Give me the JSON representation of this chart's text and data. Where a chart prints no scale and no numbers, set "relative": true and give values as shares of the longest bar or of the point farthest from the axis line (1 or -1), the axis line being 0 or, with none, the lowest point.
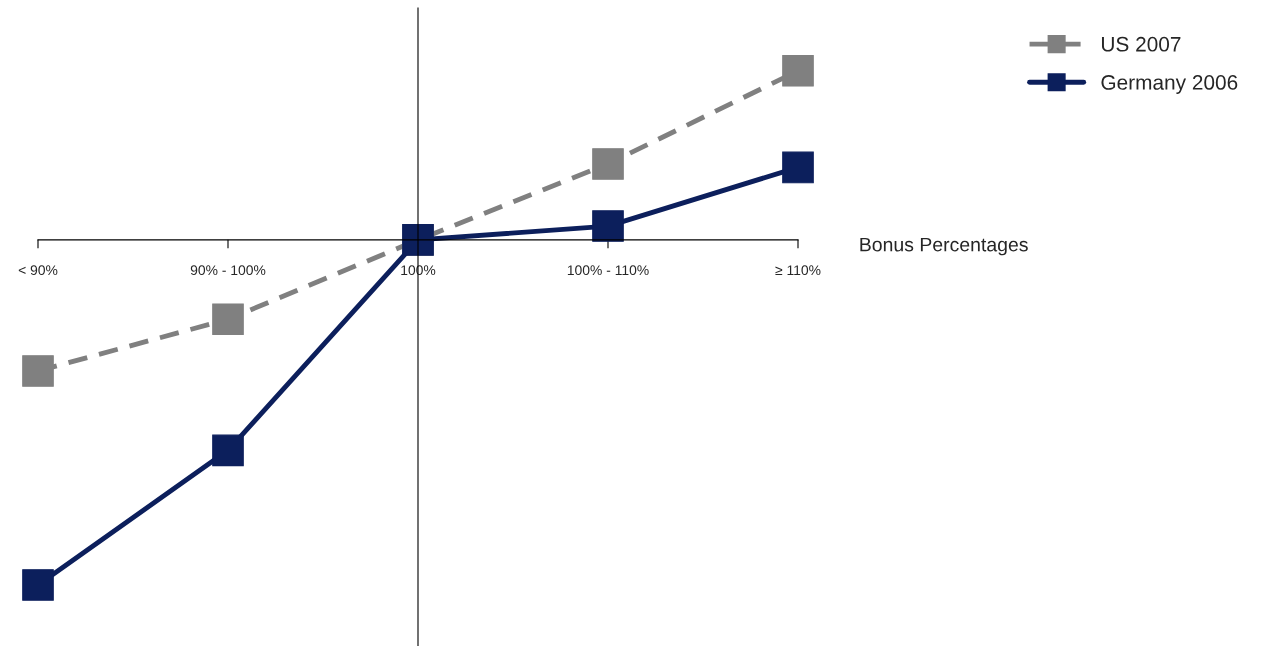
{
  "chart_data": {
    "type": "line",
    "relative": true,
    "xlabel": "Bonus Percentages",
    "categories": [
      "< 90%",
      "90% - 100%",
      "100%",
      "100% - 110%",
      "≥ 110%"
    ],
    "series": [
      {
        "name": "US 2007",
        "color": "#808080",
        "line_style": "dashed",
        "values": [
          -0.38,
          -0.23,
          0,
          0.22,
          0.49
        ]
      },
      {
        "name": "Germany 2006",
        "color": "#0c1f5c",
        "line_style": "solid",
        "values": [
          -1,
          -0.61,
          0,
          0.04,
          0.21
        ]
      }
    ],
    "marker": "square",
    "legend": "top right"
  }
}
